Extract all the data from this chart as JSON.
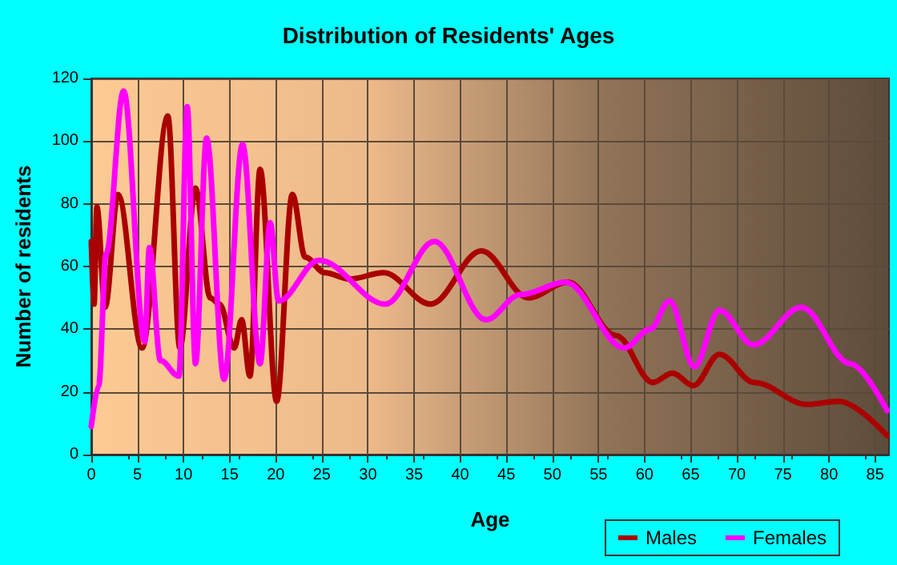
{
  "chart_data": {
    "type": "line",
    "title": "Distribution of Residents' Ages",
    "xlabel": "Age",
    "ylabel": "Number of residents",
    "xlim": [
      0,
      86.5
    ],
    "xticks": [
      0,
      5,
      10,
      15,
      20,
      25,
      30,
      35,
      40,
      45,
      50,
      55,
      60,
      65,
      70,
      75,
      80,
      85
    ],
    "ylim": [
      0,
      120
    ],
    "yticks": [
      0,
      20,
      40,
      60,
      80,
      100,
      120
    ],
    "grid": true,
    "legend": "bottom right",
    "marker": "none",
    "line_style": "solid",
    "series": [
      {
        "name": "Males",
        "color": "#aa0000",
        "x": [
          0,
          0.3,
          0.6,
          1.5,
          2.9,
          5.5,
          8.3,
          9.6,
          11.3,
          12.9,
          13.9,
          15.5,
          16.3,
          17.2,
          18.3,
          20.1,
          21.8,
          23.2,
          25.3,
          28,
          31.7,
          36.8,
          42.3,
          47.4,
          51.7,
          56.9,
          60.9,
          63,
          65.3,
          68.1,
          71.9,
          77.6,
          81.1,
          86.3
        ],
        "values": [
          68,
          48,
          79,
          47,
          83,
          34,
          108,
          34,
          85,
          50,
          48,
          34,
          43,
          25,
          91,
          17,
          83,
          63,
          58,
          56,
          58,
          48,
          65,
          50,
          55,
          38,
          23,
          26,
          22,
          32,
          23,
          16,
          17,
          6
        ]
      },
      {
        "name": "Females",
        "color": "#ff00ff",
        "x": [
          0,
          0.8,
          1.6,
          3.5,
          5.8,
          6.3,
          7.5,
          9.5,
          10.4,
          11.3,
          12.5,
          14.4,
          16.4,
          18.3,
          19.4,
          20.3,
          24.7,
          31.9,
          37.2,
          42.8,
          46.5,
          51.4,
          57.8,
          60.6,
          62.7,
          65.4,
          68.1,
          71.8,
          77,
          82.3,
          86.3
        ],
        "values": [
          9,
          22,
          64,
          116,
          36,
          66,
          30,
          25,
          111,
          29,
          101,
          24,
          99,
          29,
          74,
          49,
          62,
          48,
          68,
          43,
          51,
          55,
          34,
          40,
          49,
          28,
          46,
          35,
          47,
          29,
          14
        ]
      }
    ]
  }
}
